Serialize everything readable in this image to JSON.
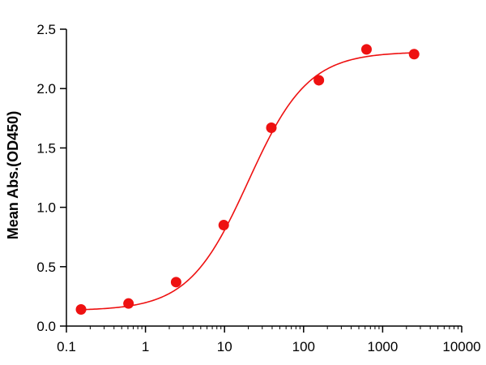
{
  "chart_data": {
    "type": "scatter",
    "title": "",
    "xlabel": "",
    "ylabel": "Mean Abs.(OD450)",
    "x_scale": "log",
    "xlim": [
      0.1,
      10000
    ],
    "ylim": [
      0.0,
      2.5
    ],
    "x_ticks": [
      0.1,
      1,
      10,
      100,
      1000,
      10000
    ],
    "x_tick_labels": [
      "0.1",
      "1",
      "10",
      "100",
      "1000",
      "10000"
    ],
    "y_ticks": [
      0.0,
      0.5,
      1.0,
      1.5,
      2.0,
      2.5
    ],
    "y_tick_labels": [
      "0.0",
      "0.5",
      "1.0",
      "1.5",
      "2.0",
      "2.5"
    ],
    "grid": false,
    "series": [
      {
        "color": "#ee1111",
        "x": [
          0.153,
          0.61,
          2.44,
          9.77,
          39.1,
          156,
          625,
          2500
        ],
        "y": [
          0.14,
          0.19,
          0.37,
          0.85,
          1.67,
          2.07,
          2.33,
          2.29
        ]
      }
    ],
    "fit": {
      "type": "4PL",
      "color": "#ee1111",
      "bottom": 0.13,
      "top": 2.31,
      "ec50": 20,
      "hill": 1.15
    }
  }
}
